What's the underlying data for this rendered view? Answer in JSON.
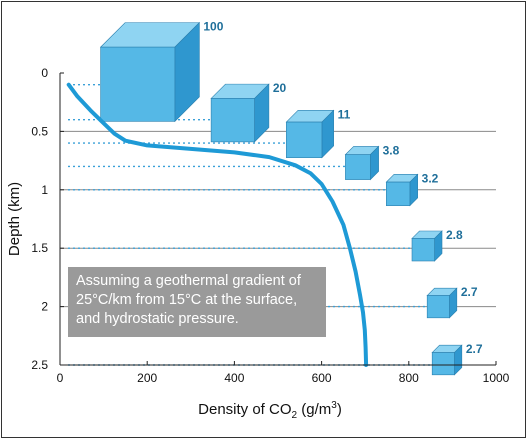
{
  "chart_data": {
    "type": "line",
    "title": "",
    "xlabel": "Density of CO",
    "xlabel_subscript": "2",
    "xlabel_unit": "(g/m",
    "xlabel_unit_sup": "3",
    "xlabel_unit_close": ")",
    "ylabel": "Depth (km)",
    "xlim": [
      0,
      1000
    ],
    "ylim": [
      2.5,
      0
    ],
    "x_ticks": [
      "0",
      "200",
      "400",
      "600",
      "800",
      "1000"
    ],
    "x_tick_values": [
      0,
      200,
      400,
      600,
      800,
      1000
    ],
    "y_ticks": [
      "0",
      "0.5",
      "1",
      "1.5",
      "2",
      "2.5"
    ],
    "y_tick_values": [
      0,
      0.5,
      1,
      1.5,
      2,
      2.5
    ],
    "grid": "horizontal",
    "series": [
      {
        "x": [
          20,
          40,
          70,
          100,
          125,
          150,
          200,
          300,
          400,
          480,
          540,
          575,
          600,
          625,
          650,
          665,
          678,
          688,
          695,
          699,
          701,
          702
        ],
        "y": [
          0.1,
          0.2,
          0.32,
          0.43,
          0.52,
          0.58,
          0.62,
          0.65,
          0.68,
          0.72,
          0.79,
          0.86,
          0.95,
          1.1,
          1.3,
          1.5,
          1.7,
          1.9,
          2.05,
          2.2,
          2.35,
          2.5
        ]
      }
    ],
    "cubes": [
      {
        "label": "100",
        "relative_volume": 100,
        "depth": 0.1
      },
      {
        "label": "20",
        "relative_volume": 20,
        "depth": 0.4
      },
      {
        "label": "11",
        "relative_volume": 11,
        "depth": 0.6
      },
      {
        "label": "3.8",
        "relative_volume": 3.8,
        "depth": 0.8
      },
      {
        "label": "3.2",
        "relative_volume": 3.2,
        "depth": 1.0
      },
      {
        "label": "2.8",
        "relative_volume": 2.8,
        "depth": 1.5
      },
      {
        "label": "2.7",
        "relative_volume": 2.7,
        "depth": 2.0
      },
      {
        "label": "2.7",
        "relative_volume": 2.7,
        "depth": 2.5
      }
    ],
    "annotation": "Assuming a geothermal gradient of 25°C/km from 15°C at the surface, and hydrostatic pressure."
  },
  "colors": {
    "curve": "#1e9ad6",
    "cube_front": "#55b8e6",
    "cube_top": "#8fd4f2",
    "cube_side": "#2f97cf",
    "cube_label": "#1f6f9a",
    "dotted_line": "#3aa0d8",
    "annotation_bg": "#9a9a9a"
  }
}
